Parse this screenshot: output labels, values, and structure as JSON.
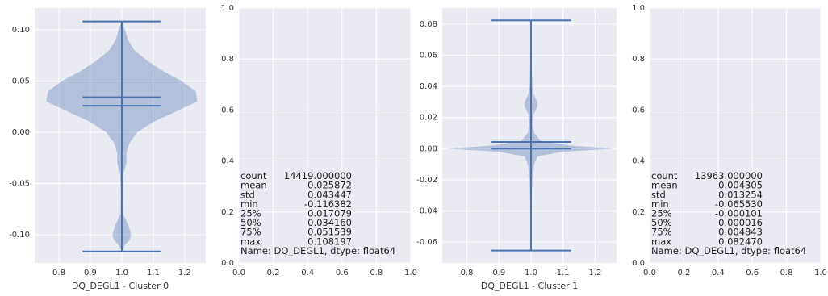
{
  "chart_data": [
    {
      "type": "violin",
      "xlabel": "DQ_DEGL1 - Cluster 0",
      "color": "#4c72b0",
      "grid": true,
      "xlim": [
        0.723,
        1.267
      ],
      "xticks": [
        0.8,
        0.9,
        {
          "value": 1.0,
          "label": "1.0"
        },
        1.1,
        1.2
      ],
      "ylim": [
        -0.1276,
        0.1213
      ],
      "yticks": [
        {
          "value": -0.1,
          "label": "-0.10"
        },
        -0.05,
        {
          "value": 0,
          "label": "0.00"
        },
        0.05,
        {
          "value": 0.1,
          "label": "0.10"
        }
      ],
      "position": 1,
      "min": -0.116382,
      "max": 0.108197,
      "mean": 0.025872,
      "median": 0.03416,
      "violin": {
        "y": [
          0.108197,
          0.1,
          0.09,
          0.08,
          0.07,
          0.06,
          0.05,
          0.04,
          0.03,
          0.02,
          0.01,
          0,
          -0.01,
          -0.02,
          -0.03,
          -0.04,
          -0.06,
          -0.08,
          -0.09,
          -0.1,
          -0.105,
          -0.11,
          -0.116382
        ],
        "width": [
          0,
          0.01,
          0.02,
          0.04,
          0.08,
          0.13,
          0.19,
          0.235,
          0.24,
          0.17,
          0.1,
          0.05,
          0.025,
          0.015,
          0.015,
          0.005,
          0.003,
          0.004,
          0.02,
          0.03,
          0.025,
          0.01,
          0
        ]
      }
    },
    {
      "type": "text",
      "xlim": [
        0,
        1
      ],
      "ylim": [
        0,
        1
      ],
      "grid": true,
      "xticks": [
        {
          "value": 0,
          "label": "0.0"
        },
        0.2,
        0.4,
        0.6,
        0.8,
        {
          "value": 1,
          "label": "1.0"
        }
      ],
      "yticks": [
        {
          "value": 0,
          "label": "0.0"
        },
        0.2,
        0.4,
        0.6,
        0.8,
        {
          "value": 1,
          "label": "1.0"
        }
      ],
      "rows": [
        [
          "count",
          "14419.000000"
        ],
        [
          "mean",
          "0.025872"
        ],
        [
          "std",
          "0.043447"
        ],
        [
          "min",
          "-0.116382"
        ],
        [
          "25%",
          "0.017079"
        ],
        [
          "50%",
          "0.034160"
        ],
        [
          "75%",
          "0.051539"
        ],
        [
          "max",
          "0.108197"
        ]
      ],
      "footer": "Name: DQ_DEGL1, dtype: float64"
    },
    {
      "type": "violin",
      "xlabel": "DQ_DEGL1 - Cluster 1",
      "color": "#4c72b0",
      "grid": true,
      "xlim": [
        0.723,
        1.267
      ],
      "xticks": [
        0.8,
        0.9,
        {
          "value": 1.0,
          "label": "1.0"
        },
        1.1,
        1.2
      ],
      "ylim": [
        -0.0735,
        0.0904
      ],
      "yticks": [
        {
          "value": -0.06,
          "label": "-0.06"
        },
        -0.04,
        -0.02,
        {
          "value": 0,
          "label": "0.00"
        },
        0.02,
        0.04,
        0.06,
        0.08
      ],
      "position": 1,
      "min": -0.06553,
      "max": 0.08247,
      "mean": 0.004305,
      "median": 1.6e-05,
      "violin": {
        "y": [
          0.08247,
          0.06,
          0.04,
          0.035,
          0.03,
          0.027,
          0.022,
          0.015,
          0.01,
          0.005,
          0.002,
          0,
          -0.002,
          -0.005,
          -0.01,
          -0.02,
          -0.04,
          -0.06553
        ],
        "width": [
          0,
          0.002,
          0.004,
          0.008,
          0.02,
          0.02,
          0.008,
          0.006,
          0.01,
          0.03,
          0.12,
          0.26,
          0.1,
          0.02,
          0.01,
          0.004,
          0.002,
          0
        ]
      }
    },
    {
      "type": "text",
      "xlim": [
        0,
        1
      ],
      "ylim": [
        0,
        1
      ],
      "grid": true,
      "xticks": [
        {
          "value": 0,
          "label": "0.0"
        },
        0.2,
        0.4,
        0.6,
        0.8,
        {
          "value": 1,
          "label": "1.0"
        }
      ],
      "yticks": [
        {
          "value": 0,
          "label": "0.0"
        },
        0.2,
        0.4,
        0.6,
        0.8,
        {
          "value": 1,
          "label": "1.0"
        }
      ],
      "rows": [
        [
          "count",
          "13963.000000"
        ],
        [
          "mean",
          "0.004305"
        ],
        [
          "std",
          "0.013254"
        ],
        [
          "min",
          "-0.065530"
        ],
        [
          "25%",
          "-0.000101"
        ],
        [
          "50%",
          "0.000016"
        ],
        [
          "75%",
          "0.004843"
        ],
        [
          "max",
          "0.082470"
        ]
      ],
      "footer": "Name: DQ_DEGL1, dtype: float64"
    }
  ]
}
